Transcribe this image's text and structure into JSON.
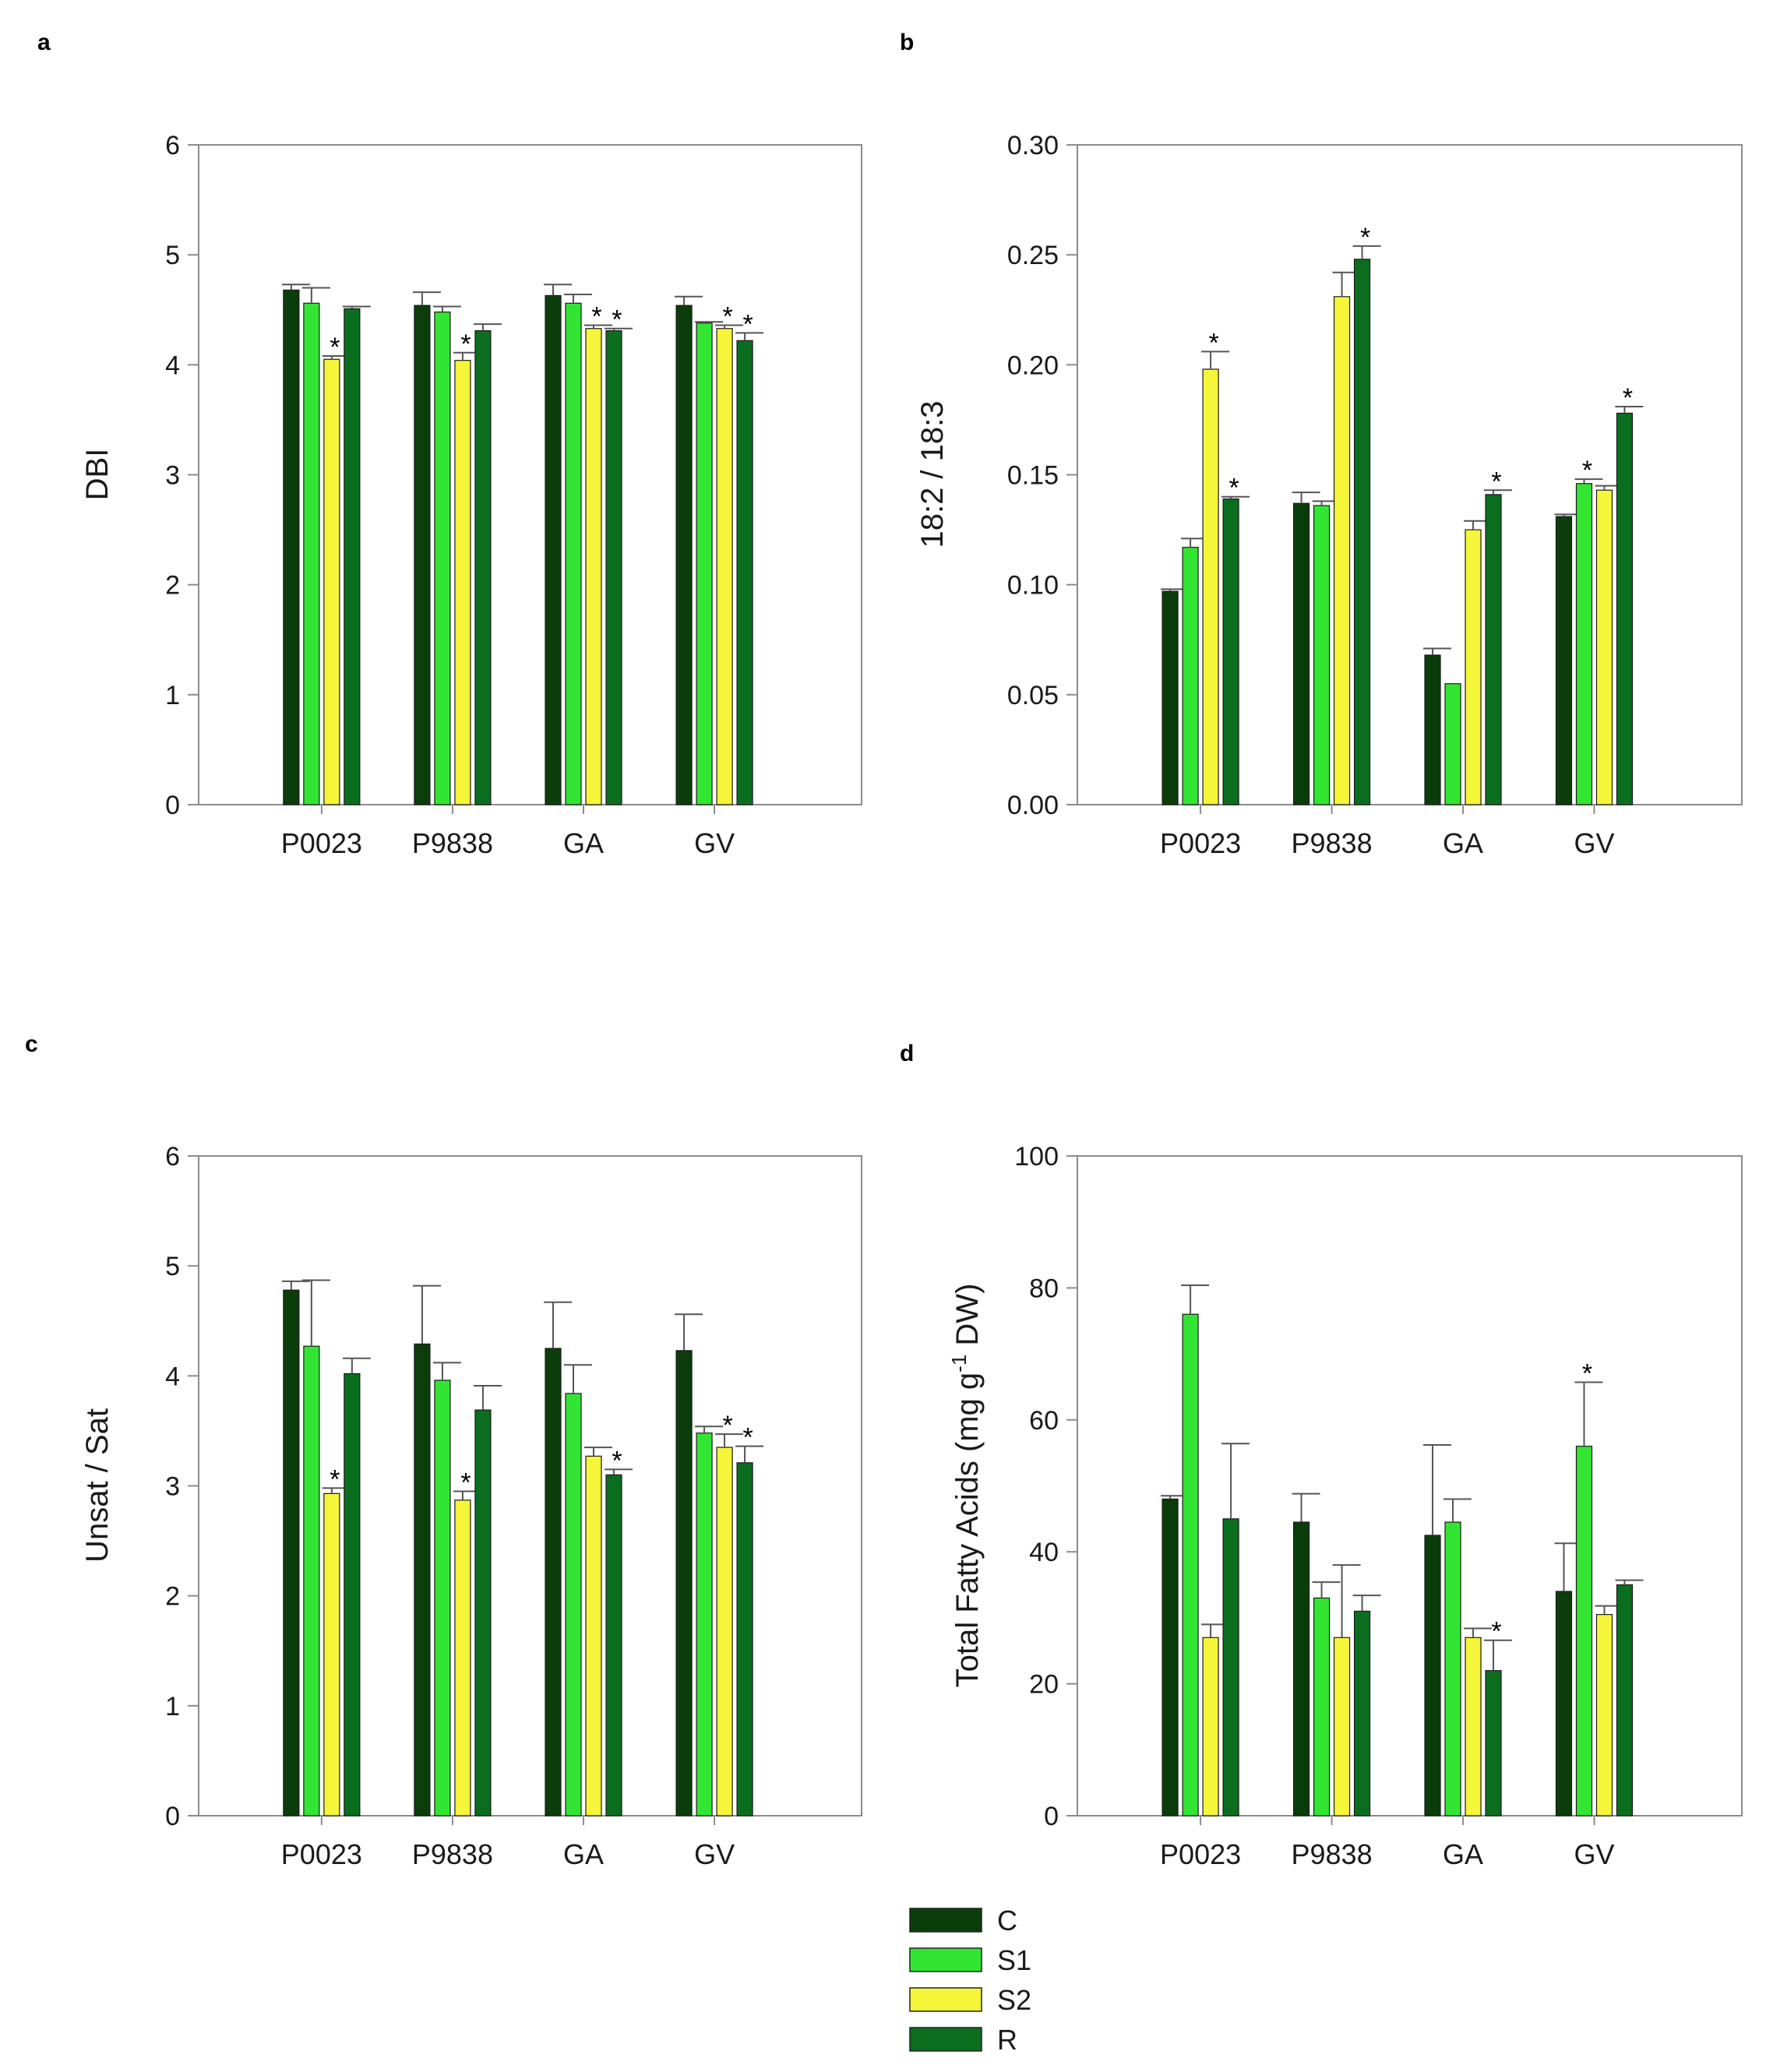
{
  "colors": {
    "C": "#0b3d0b",
    "S1": "#33e533",
    "S2": "#f5f53a",
    "R": "#0b6e1f",
    "axis": "#8c8c8c",
    "errorbar": "#555555"
  },
  "legend": {
    "items": [
      {
        "key": "C",
        "label": "C"
      },
      {
        "key": "S1",
        "label": "S1"
      },
      {
        "key": "S2",
        "label": "S2"
      },
      {
        "key": "R",
        "label": "R"
      }
    ]
  },
  "chart_data": [
    {
      "panel": "a",
      "type": "bar",
      "ylabel": "DBI",
      "categories": [
        "P0023",
        "P9838",
        "GA",
        "GV"
      ],
      "ylim": [
        0,
        6
      ],
      "yticks": [
        "0",
        "1",
        "2",
        "3",
        "4",
        "5",
        "6"
      ],
      "series": [
        {
          "name": "C",
          "values": [
            4.68,
            4.54,
            4.63,
            4.54
          ],
          "errors": [
            0.05,
            0.12,
            0.1,
            0.08
          ],
          "sig": [
            false,
            false,
            false,
            false
          ]
        },
        {
          "name": "S1",
          "values": [
            4.56,
            4.48,
            4.56,
            4.38
          ],
          "errors": [
            0.14,
            0.05,
            0.08,
            0.01
          ],
          "sig": [
            false,
            false,
            false,
            false
          ]
        },
        {
          "name": "S2",
          "values": [
            4.05,
            4.04,
            4.33,
            4.33
          ],
          "errors": [
            0.03,
            0.07,
            0.03,
            0.03
          ],
          "sig": [
            true,
            true,
            true,
            true
          ]
        },
        {
          "name": "R",
          "values": [
            4.51,
            4.31,
            4.31,
            4.22
          ],
          "errors": [
            0.02,
            0.06,
            0.02,
            0.07
          ],
          "sig": [
            false,
            false,
            true,
            true
          ]
        }
      ]
    },
    {
      "panel": "b",
      "type": "bar",
      "ylabel": "18:2 / 18:3",
      "categories": [
        "P0023",
        "P9838",
        "GA",
        "GV"
      ],
      "ylim": [
        0,
        0.3
      ],
      "yticks": [
        "0.00",
        "0.05",
        "0.10",
        "0.15",
        "0.20",
        "0.25",
        "0.30"
      ],
      "series": [
        {
          "name": "C",
          "values": [
            0.097,
            0.137,
            0.068,
            0.131
          ],
          "errors": [
            0.001,
            0.005,
            0.003,
            0.001
          ],
          "sig": [
            false,
            false,
            false,
            false
          ]
        },
        {
          "name": "S1",
          "values": [
            0.117,
            0.136,
            0.055,
            0.146
          ],
          "errors": [
            0.004,
            0.002,
            0.0,
            0.002
          ],
          "sig": [
            false,
            false,
            false,
            true
          ]
        },
        {
          "name": "S2",
          "values": [
            0.198,
            0.231,
            0.125,
            0.143
          ],
          "errors": [
            0.008,
            0.011,
            0.004,
            0.002
          ],
          "sig": [
            true,
            false,
            false,
            false
          ]
        },
        {
          "name": "R",
          "values": [
            0.139,
            0.248,
            0.141,
            0.178
          ],
          "errors": [
            0.001,
            0.006,
            0.002,
            0.003
          ],
          "sig": [
            true,
            true,
            true,
            true
          ]
        }
      ]
    },
    {
      "panel": "c",
      "type": "bar",
      "ylabel": "Unsat / Sat",
      "categories": [
        "P0023",
        "P9838",
        "GA",
        "GV"
      ],
      "ylim": [
        0,
        6
      ],
      "yticks": [
        "0",
        "1",
        "2",
        "3",
        "4",
        "5",
        "6"
      ],
      "series": [
        {
          "name": "C",
          "values": [
            4.78,
            4.29,
            4.25,
            4.23
          ],
          "errors": [
            0.08,
            0.53,
            0.42,
            0.33
          ],
          "sig": [
            false,
            false,
            false,
            false
          ]
        },
        {
          "name": "S1",
          "values": [
            4.27,
            3.96,
            3.84,
            3.48
          ],
          "errors": [
            0.6,
            0.16,
            0.26,
            0.06
          ],
          "sig": [
            false,
            false,
            false,
            false
          ]
        },
        {
          "name": "S2",
          "values": [
            2.93,
            2.87,
            3.27,
            3.35
          ],
          "errors": [
            0.05,
            0.08,
            0.08,
            0.12
          ],
          "sig": [
            true,
            true,
            false,
            true
          ]
        },
        {
          "name": "R",
          "values": [
            4.02,
            3.69,
            3.1,
            3.21
          ],
          "errors": [
            0.14,
            0.22,
            0.05,
            0.15
          ],
          "sig": [
            false,
            false,
            true,
            true
          ]
        }
      ]
    },
    {
      "panel": "d",
      "type": "bar",
      "ylabel": "Total Fatty Acids (mg g",
      "ylabel_sup": "-1",
      "ylabel_end": " DW)",
      "categories": [
        "P0023",
        "P9838",
        "GA",
        "GV"
      ],
      "ylim": [
        0,
        100
      ],
      "yticks": [
        "0",
        "20",
        "40",
        "60",
        "80",
        "100"
      ],
      "series": [
        {
          "name": "C",
          "values": [
            48,
            44.5,
            42.5,
            34
          ],
          "errors": [
            0.5,
            4.3,
            13.7,
            7.3
          ],
          "sig": [
            false,
            false,
            false,
            false
          ]
        },
        {
          "name": "S1",
          "values": [
            76,
            33,
            44.5,
            56
          ],
          "errors": [
            4.4,
            2.4,
            3.5,
            9.7
          ],
          "sig": [
            false,
            false,
            false,
            true
          ]
        },
        {
          "name": "S2",
          "values": [
            27,
            27,
            27,
            30.5
          ],
          "errors": [
            2.0,
            11.0,
            1.4,
            1.3
          ],
          "sig": [
            false,
            false,
            false,
            false
          ]
        },
        {
          "name": "R",
          "values": [
            45,
            31,
            22,
            35
          ],
          "errors": [
            11.4,
            2.4,
            4.6,
            0.7
          ],
          "sig": [
            false,
            false,
            true,
            false
          ]
        }
      ]
    }
  ]
}
